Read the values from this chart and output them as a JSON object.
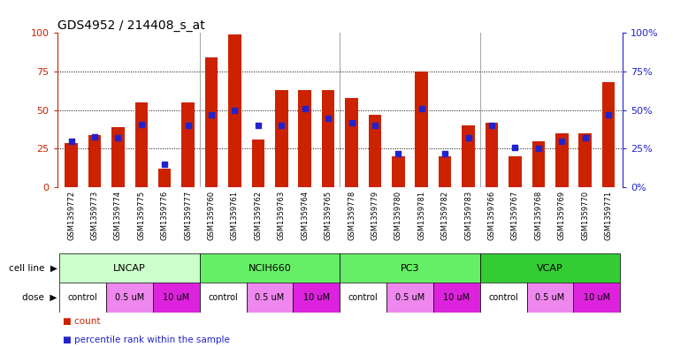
{
  "title": "GDS4952 / 214408_s_at",
  "samples": [
    "GSM1359772",
    "GSM1359773",
    "GSM1359774",
    "GSM1359775",
    "GSM1359776",
    "GSM1359777",
    "GSM1359760",
    "GSM1359761",
    "GSM1359762",
    "GSM1359763",
    "GSM1359764",
    "GSM1359765",
    "GSM1359778",
    "GSM1359779",
    "GSM1359780",
    "GSM1359781",
    "GSM1359782",
    "GSM1359783",
    "GSM1359766",
    "GSM1359767",
    "GSM1359768",
    "GSM1359769",
    "GSM1359770",
    "GSM1359771"
  ],
  "red_values": [
    29,
    34,
    39,
    55,
    12,
    55,
    84,
    99,
    31,
    63,
    63,
    63,
    58,
    47,
    20,
    75,
    20,
    40,
    42,
    20,
    30,
    35,
    35,
    68
  ],
  "blue_values": [
    30,
    33,
    32,
    41,
    15,
    40,
    47,
    50,
    40,
    40,
    51,
    45,
    42,
    40,
    22,
    51,
    22,
    32,
    40,
    26,
    25,
    30,
    32,
    47
  ],
  "red_color": "#cc2200",
  "blue_color": "#2222cc",
  "bar_width": 0.55,
  "ylim": [
    0,
    100
  ],
  "yticks": [
    0,
    25,
    50,
    75,
    100
  ],
  "ytick_labels_left": [
    "0",
    "25",
    "50",
    "75",
    "100"
  ],
  "ytick_labels_right": [
    "0%",
    "25%",
    "50%",
    "75%",
    "100%"
  ],
  "cell_lines": [
    {
      "label": "LNCAP",
      "start": 0,
      "end": 6,
      "color": "#ccffcc"
    },
    {
      "label": "NCIH660",
      "start": 6,
      "end": 12,
      "color": "#66ee66"
    },
    {
      "label": "PC3",
      "start": 12,
      "end": 18,
      "color": "#66ee66"
    },
    {
      "label": "VCAP",
      "start": 18,
      "end": 24,
      "color": "#33cc33"
    }
  ],
  "dose_groups": [
    {
      "label": "control",
      "start": 0,
      "end": 2,
      "color": "#ffffff"
    },
    {
      "label": "0.5 uM",
      "start": 2,
      "end": 4,
      "color": "#ee88ee"
    },
    {
      "label": "10 uM",
      "start": 4,
      "end": 6,
      "color": "#dd22dd"
    },
    {
      "label": "control",
      "start": 6,
      "end": 8,
      "color": "#ffffff"
    },
    {
      "label": "0.5 uM",
      "start": 8,
      "end": 10,
      "color": "#ee88ee"
    },
    {
      "label": "10 uM",
      "start": 10,
      "end": 12,
      "color": "#dd22dd"
    },
    {
      "label": "control",
      "start": 12,
      "end": 14,
      "color": "#ffffff"
    },
    {
      "label": "0.5 uM",
      "start": 14,
      "end": 16,
      "color": "#ee88ee"
    },
    {
      "label": "10 uM",
      "start": 16,
      "end": 18,
      "color": "#dd22dd"
    },
    {
      "label": "control",
      "start": 18,
      "end": 20,
      "color": "#ffffff"
    },
    {
      "label": "0.5 uM",
      "start": 20,
      "end": 22,
      "color": "#ee88ee"
    },
    {
      "label": "10 uM",
      "start": 22,
      "end": 24,
      "color": "#dd22dd"
    }
  ],
  "xtick_bg": "#d8d8d8",
  "legend_items": [
    {
      "label": "count",
      "color": "#cc2200"
    },
    {
      "label": "percentile rank within the sample",
      "color": "#2222cc"
    }
  ]
}
